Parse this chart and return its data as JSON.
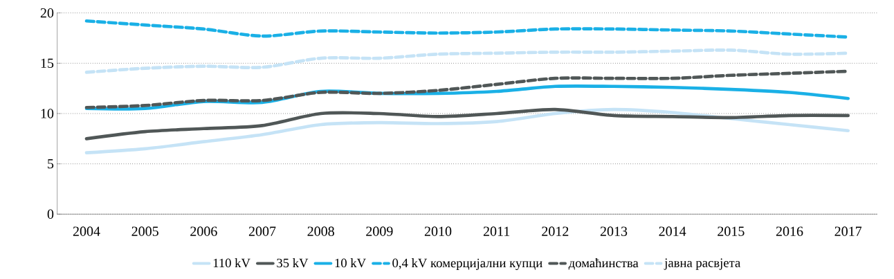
{
  "chart_data": {
    "type": "line",
    "categories": [
      "2004",
      "2005",
      "2006",
      "2007",
      "2008",
      "2009",
      "2010",
      "2011",
      "2012",
      "2013",
      "2014",
      "2015",
      "2016",
      "2017"
    ],
    "ylim": [
      0,
      20
    ],
    "yticks": [
      0,
      5,
      10,
      15,
      20
    ],
    "grid": "y",
    "legend": "bottom",
    "marker": "none",
    "series": [
      {
        "name": "110 kV",
        "color": "#c5e3f6",
        "line_style": "solid",
        "values": [
          6.1,
          6.5,
          7.2,
          7.9,
          8.9,
          9.1,
          9.0,
          9.2,
          10.0,
          10.4,
          10.1,
          9.5,
          8.9,
          8.3
        ]
      },
      {
        "name": "35 kV",
        "color": "#505757",
        "line_style": "solid",
        "values": [
          7.5,
          8.2,
          8.5,
          8.8,
          10.0,
          10.0,
          9.7,
          10.0,
          10.4,
          9.8,
          9.7,
          9.6,
          9.8,
          9.8
        ]
      },
      {
        "name": "10 kV",
        "color": "#1ab0e6",
        "line_style": "solid",
        "values": [
          10.5,
          10.5,
          11.2,
          11.1,
          12.2,
          12.0,
          12.0,
          12.2,
          12.7,
          12.7,
          12.6,
          12.4,
          12.1,
          11.5
        ]
      },
      {
        "name": "0,4 kV комерцијални купци",
        "color": "#1ab0e6",
        "line_style": "dashed",
        "values": [
          19.2,
          18.8,
          18.4,
          17.7,
          18.2,
          18.1,
          18.0,
          18.1,
          18.4,
          18.4,
          18.3,
          18.2,
          17.9,
          17.6
        ]
      },
      {
        "name": "домаћинства",
        "color": "#505757",
        "line_style": "dashed",
        "values": [
          10.6,
          10.8,
          11.3,
          11.3,
          12.1,
          12.0,
          12.3,
          12.9,
          13.5,
          13.5,
          13.5,
          13.8,
          14.0,
          14.2
        ]
      },
      {
        "name": "јавна расвјета",
        "color": "#c5e3f6",
        "line_style": "dashed",
        "values": [
          14.1,
          14.5,
          14.7,
          14.6,
          15.5,
          15.5,
          15.9,
          16.0,
          16.1,
          16.1,
          16.2,
          16.3,
          15.9,
          16.0
        ]
      }
    ]
  }
}
